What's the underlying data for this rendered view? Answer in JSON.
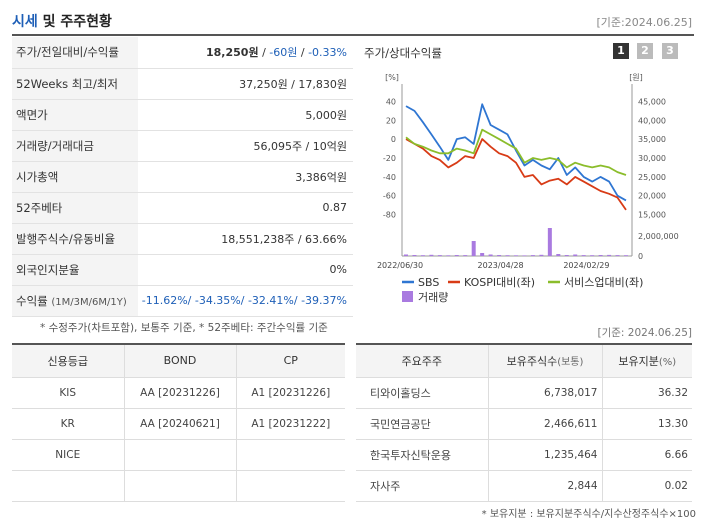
{
  "header": {
    "title_accent": "시세",
    "title_rest": " 및 주주현황",
    "date": "[기준:2024.06.25]"
  },
  "summary": [
    {
      "label": "주가/전일대비/수익률",
      "price": "18,250원",
      "sep1": " / ",
      "change": "-60원",
      "sep2": " / ",
      "rate": "-0.33%"
    },
    {
      "label": "52Weeks 최고/최저",
      "value": "37,250원 / 17,830원"
    },
    {
      "label": "액면가",
      "value": "5,000원"
    },
    {
      "label": "거래량/거래대금",
      "value": "56,095주 / 10억원"
    },
    {
      "label": "시가총액",
      "value": "3,386억원"
    },
    {
      "label": "52주베타",
      "value": "0.87"
    },
    {
      "label": "발행주식수/유동비율",
      "value": "18,551,238주 / 63.66%"
    },
    {
      "label": "외국인지분율",
      "value": "0%"
    },
    {
      "label": "수익률",
      "label_small": "(1M/3M/6M/1Y)",
      "value": "-11.62%/ -34.35%/ -32.41%/ -39.37%"
    }
  ],
  "note1": "* 수정주가(차트포함), 보통주 기준, * 52주베타: 주간수익률 기준",
  "chart_panel": {
    "title": "주가/상대수익률",
    "pages": [
      "1",
      "2",
      "3"
    ]
  },
  "chart_data": {
    "type": "line",
    "left_axis_unit": "[%]",
    "right_axis_unit": "[원]",
    "left_ticks": [
      "40",
      "20",
      "0",
      "-20",
      "-40",
      "-60",
      "-80"
    ],
    "right_ticks": [
      "45,000",
      "40,000",
      "35,000",
      "30,000",
      "25,000",
      "20,000",
      "15,000"
    ],
    "volume_tick": "2,000,000",
    "volume_zero": "0",
    "x_ticks": [
      "2022/06/30",
      "2023/04/28",
      "2024/02/29"
    ],
    "left_ylim": [
      -90,
      50
    ],
    "volume_ylim": [
      0,
      3000000
    ],
    "series": [
      {
        "name": "SBS",
        "color": "#2f76d2",
        "values": [
          35,
          30,
          18,
          5,
          -8,
          -22,
          0,
          2,
          -5,
          37,
          15,
          10,
          5,
          -12,
          -28,
          -22,
          -28,
          -32,
          -20,
          -38,
          -30,
          -40,
          -45,
          -40,
          -45,
          -60,
          -65
        ]
      },
      {
        "name": "KOSPI대비(좌)",
        "color": "#d83b16",
        "values": [
          0,
          -5,
          -10,
          -18,
          -22,
          -30,
          -25,
          -18,
          -20,
          0,
          -8,
          -15,
          -18,
          -25,
          -40,
          -38,
          -48,
          -44,
          -42,
          -48,
          -40,
          -45,
          -50,
          -55,
          -58,
          -62,
          -75
        ]
      },
      {
        "name": "서비스업대비(좌)",
        "color": "#8bbd2b",
        "values": [
          2,
          -5,
          -8,
          -12,
          -15,
          -15,
          -10,
          -12,
          -15,
          10,
          5,
          0,
          -5,
          -10,
          -25,
          -20,
          -22,
          -20,
          -22,
          -30,
          -25,
          -28,
          -30,
          -28,
          -30,
          -35,
          -38
        ]
      }
    ],
    "volume": {
      "name": "거래량",
      "color": "#a97ae0",
      "values": [
        150000,
        100000,
        80000,
        120000,
        90000,
        70000,
        100000,
        90000,
        1500000,
        300000,
        150000,
        100000,
        80000,
        70000,
        60000,
        90000,
        120000,
        2800000,
        200000,
        100000,
        150000,
        90000,
        80000,
        100000,
        110000,
        90000,
        80000
      ]
    }
  },
  "credit": {
    "headers": [
      "신용등급",
      "BOND",
      "CP"
    ],
    "rows": [
      [
        "KIS",
        "AA [20231226]",
        "A1 [20231226]"
      ],
      [
        "KR",
        "AA [20240621]",
        "A1 [20231222]"
      ],
      [
        "NICE",
        "",
        ""
      ],
      [
        "",
        "",
        ""
      ]
    ]
  },
  "date2": "[기준: 2024.06.25]",
  "shareholders": {
    "headers": [
      "주요주주",
      "보유주식수",
      "(보통)",
      "보유지분",
      "(%)"
    ],
    "rows": [
      [
        "티와이홀딩스",
        "6,738,017",
        "36.32"
      ],
      [
        "국민연금공단",
        "2,466,611",
        "13.30"
      ],
      [
        "한국투자신탁운용",
        "1,235,464",
        "6.66"
      ],
      [
        "자사주",
        "2,844",
        "0.02"
      ]
    ]
  },
  "note2": "* 보유지분 : 보유지분주식수/지수산정주식수×100"
}
